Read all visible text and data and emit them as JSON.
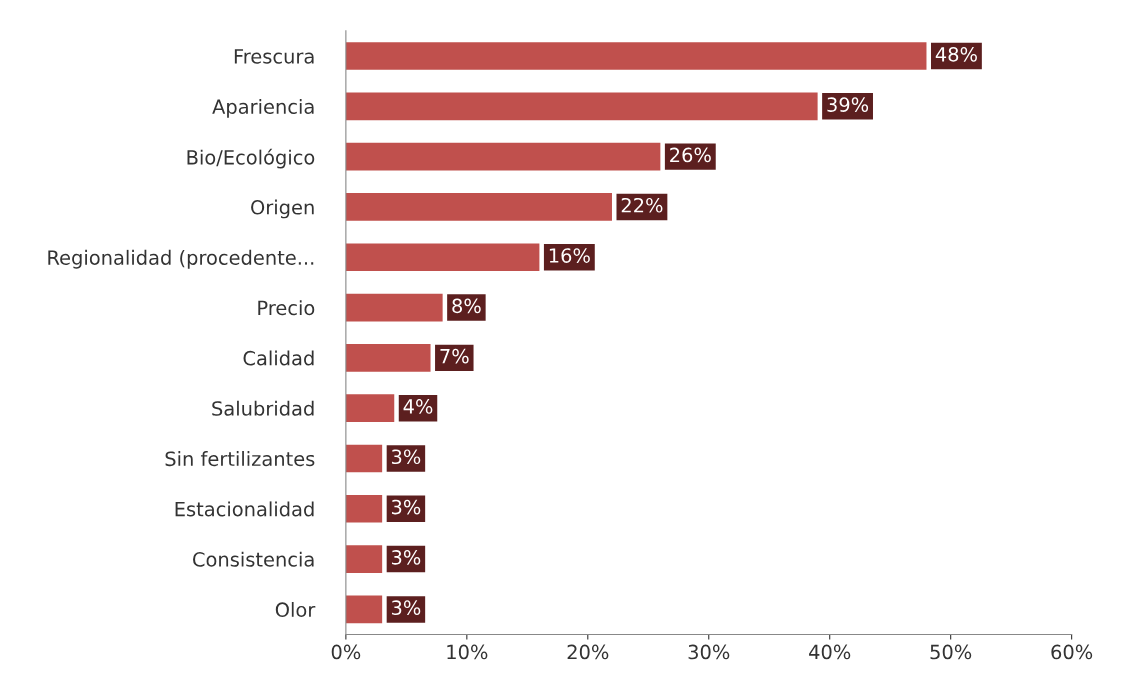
{
  "chart_data": {
    "type": "bar",
    "orientation": "horizontal",
    "categories": [
      "Frescura",
      "Apariencia",
      "Bio/Ecológico",
      "Origen",
      "Regionalidad (procedente...",
      "Precio",
      "Calidad",
      "Salubridad",
      "Sin fertilizantes",
      "Estacionalidad",
      "Consistencia",
      "Olor"
    ],
    "values": [
      48,
      39,
      26,
      22,
      16,
      8,
      7,
      4,
      3,
      3,
      3,
      3
    ],
    "value_labels": [
      "48%",
      "39%",
      "26%",
      "22%",
      "16%",
      "8%",
      "7%",
      "4%",
      "3%",
      "3%",
      "3%",
      "3%"
    ],
    "color": "#c0504d",
    "xlim": [
      0,
      60
    ],
    "xticks": [
      {
        "value": 0,
        "label": "0%"
      },
      {
        "value": 10,
        "label": "10%"
      },
      {
        "value": 20,
        "label": "20%"
      },
      {
        "value": 30,
        "label": "30%"
      },
      {
        "value": 40,
        "label": "40%"
      },
      {
        "value": 50,
        "label": "50%"
      },
      {
        "value": 60,
        "label": "60%"
      }
    ],
    "grid": false,
    "legend": false
  }
}
